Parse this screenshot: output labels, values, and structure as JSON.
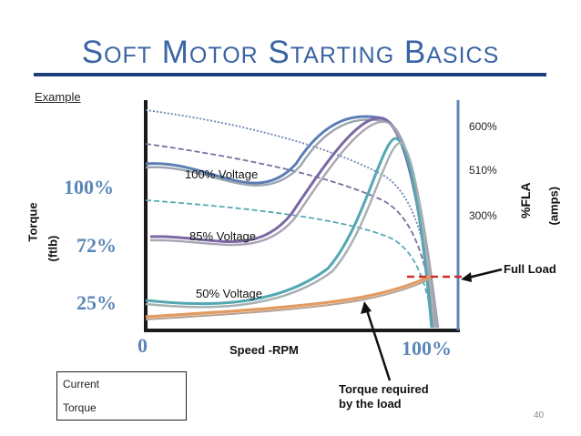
{
  "title": "Soft Motor Starting Basics",
  "example_label": "Example",
  "slide_number": "40",
  "chart_data": {
    "type": "line",
    "xlabel": "Speed -RPM",
    "x_ticks": [
      "0",
      "100%"
    ],
    "y_left_title_line1": "Torque",
    "y_left_title_line2": "(ftlb)",
    "y_left_ticks": [
      "100%",
      "72%",
      "25%"
    ],
    "y_right_title_line1": "%FLA",
    "y_right_title_line2": "(amps)",
    "y_right_ticks": [
      "600%",
      "510%",
      "300%"
    ],
    "series": [
      {
        "label": "100% Voltage",
        "kind": "torque",
        "color": "#5b7db5"
      },
      {
        "label": "85% Voltage",
        "kind": "torque",
        "color": "#7b67a3"
      },
      {
        "label": "50% Voltage",
        "kind": "torque",
        "color": "#53a7b3"
      }
    ],
    "annotations": {
      "full_load": "Full Load",
      "torque_required_line1": "Torque required",
      "torque_required_line2": "by the load"
    },
    "legend": {
      "current": "Current",
      "torque": "Torque"
    },
    "colors": {
      "axis": "#1a1a1a",
      "right_axis": "#5b86b8",
      "load_curve": "#e39a5f",
      "full_load_line": "#d42a2a"
    }
  }
}
